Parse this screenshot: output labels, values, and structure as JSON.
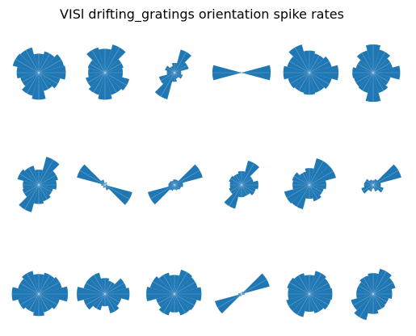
{
  "figure": {
    "title": "VISl drifting_gratings orientation spike rates"
  },
  "chart_data": {
    "type": "polar-bar",
    "title": "VISl drifting_gratings orientation spike rates",
    "grid": "3x6",
    "bar_color": "#1f77b4",
    "rmax": 1.0,
    "orientations_deg": [
      0,
      30,
      60,
      90,
      120,
      150,
      180,
      210,
      240,
      270,
      300,
      330
    ],
    "panels": [
      {
        "values": [
          0.88,
          0.85,
          0.72,
          0.62,
          0.85,
          0.88,
          0.72,
          0.62,
          0.78,
          0.88,
          0.62,
          0.72
        ]
      },
      {
        "values": [
          0.58,
          0.62,
          0.95,
          0.78,
          0.85,
          0.58,
          0.55,
          0.65,
          0.75,
          0.88,
          0.75,
          0.82
        ]
      },
      {
        "values": [
          0.22,
          0.48,
          0.78,
          0.32,
          0.22,
          0.32,
          0.25,
          0.52,
          0.9,
          0.3,
          0.2,
          0.28
        ]
      },
      {
        "values": [
          0.95,
          0.04,
          0.02,
          0.02,
          0.03,
          0.05,
          0.95,
          0.04,
          0.02,
          0.02,
          0.03,
          0.05
        ]
      },
      {
        "values": [
          0.95,
          0.75,
          0.65,
          0.72,
          0.95,
          0.75,
          0.85,
          0.72,
          0.68,
          0.72,
          0.68,
          0.75
        ]
      },
      {
        "values": [
          0.88,
          0.65,
          0.78,
          0.92,
          0.75,
          0.58,
          0.68,
          0.65,
          0.68,
          0.95,
          0.68,
          0.58
        ]
      },
      {
        "values": [
          0.58,
          0.65,
          0.95,
          0.5,
          0.65,
          0.72,
          0.52,
          0.55,
          0.92,
          0.62,
          0.55,
          0.48
        ]
      },
      {
        "values": [
          0.08,
          0.04,
          0.1,
          0.06,
          0.18,
          0.95,
          0.12,
          0.06,
          0.1,
          0.08,
          0.18,
          0.92
        ]
      },
      {
        "values": [
          0.28,
          0.95,
          0.18,
          0.18,
          0.15,
          0.18,
          0.2,
          0.9,
          0.2,
          0.15,
          0.18,
          0.22
        ]
      },
      {
        "values": [
          0.55,
          0.4,
          0.82,
          0.45,
          0.38,
          0.42,
          0.38,
          0.42,
          0.8,
          0.4,
          0.38,
          0.48
        ]
      },
      {
        "values": [
          0.55,
          0.9,
          0.9,
          0.55,
          0.45,
          0.58,
          0.55,
          0.85,
          0.82,
          0.45,
          0.55,
          0.48
        ]
      },
      {
        "values": [
          0.25,
          0.95,
          0.2,
          0.15,
          0.18,
          0.28,
          0.3,
          0.4,
          0.22,
          0.12,
          0.22,
          0.35
        ]
      },
      {
        "values": [
          0.95,
          0.78,
          0.72,
          0.65,
          0.78,
          0.7,
          0.88,
          0.7,
          0.62,
          0.72,
          0.62,
          0.7
        ]
      },
      {
        "values": [
          0.8,
          0.72,
          0.45,
          0.52,
          0.72,
          0.72,
          0.92,
          0.72,
          0.55,
          0.4,
          0.65,
          0.55
        ]
      },
      {
        "values": [
          0.88,
          0.78,
          0.82,
          0.62,
          0.72,
          0.82,
          0.92,
          0.62,
          0.72,
          0.6,
          0.72,
          0.75
        ]
      },
      {
        "values": [
          0.1,
          0.95,
          0.08,
          0.05,
          0.03,
          0.06,
          0.1,
          0.9,
          0.08,
          0.05,
          0.03,
          0.06
        ]
      },
      {
        "values": [
          0.75,
          0.72,
          0.78,
          0.62,
          0.7,
          0.75,
          0.7,
          0.78,
          0.78,
          0.58,
          0.65,
          0.72
        ]
      },
      {
        "values": [
          0.62,
          0.75,
          0.85,
          0.68,
          0.62,
          0.55,
          0.55,
          0.75,
          0.88,
          0.65,
          0.55,
          0.52
        ]
      }
    ]
  }
}
